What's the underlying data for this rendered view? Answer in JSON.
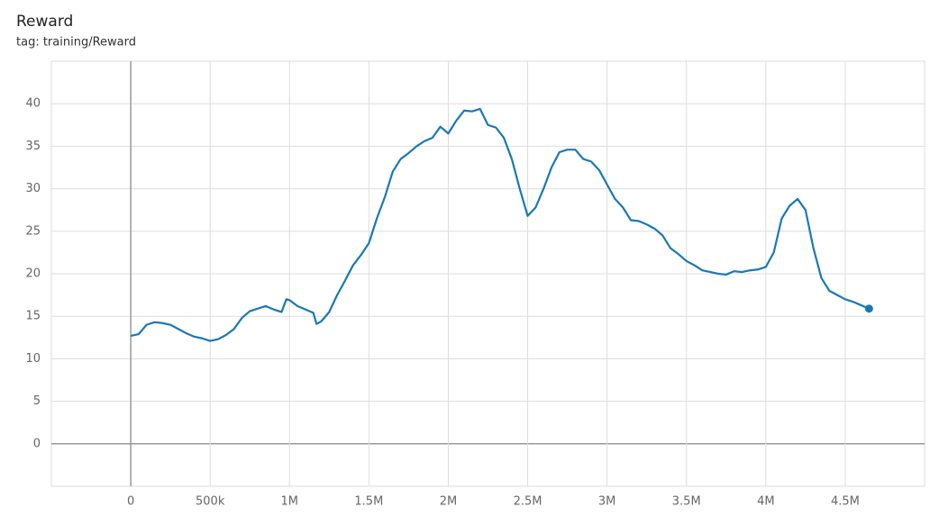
{
  "chart_data": {
    "type": "line",
    "title": "Reward",
    "subtitle": "tag: training/Reward",
    "x": [
      0,
      50000,
      100000,
      150000,
      200000,
      250000,
      300000,
      350000,
      400000,
      450000,
      500000,
      550000,
      600000,
      650000,
      700000,
      750000,
      800000,
      850000,
      900000,
      950000,
      980000,
      1000000,
      1050000,
      1100000,
      1150000,
      1170000,
      1200000,
      1250000,
      1300000,
      1350000,
      1400000,
      1450000,
      1500000,
      1550000,
      1600000,
      1650000,
      1700000,
      1750000,
      1800000,
      1850000,
      1900000,
      1950000,
      2000000,
      2050000,
      2100000,
      2150000,
      2200000,
      2250000,
      2300000,
      2350000,
      2400000,
      2450000,
      2500000,
      2550000,
      2600000,
      2650000,
      2700000,
      2750000,
      2800000,
      2850000,
      2900000,
      2950000,
      3000000,
      3050000,
      3100000,
      3150000,
      3200000,
      3250000,
      3300000,
      3350000,
      3400000,
      3450000,
      3500000,
      3550000,
      3600000,
      3650000,
      3700000,
      3750000,
      3800000,
      3850000,
      3900000,
      3950000,
      4000000,
      4050000,
      4100000,
      4150000,
      4200000,
      4250000,
      4300000,
      4350000,
      4400000,
      4450000,
      4500000,
      4550000,
      4600000,
      4650000
    ],
    "series": [
      {
        "name": "Reward",
        "color": "#1a78b8",
        "values": [
          12.7,
          12.9,
          14.0,
          14.3,
          14.2,
          14.0,
          13.5,
          13.0,
          12.6,
          12.4,
          12.1,
          12.3,
          12.8,
          13.5,
          14.8,
          15.6,
          15.9,
          16.2,
          15.8,
          15.5,
          17.0,
          16.9,
          16.2,
          15.8,
          15.4,
          14.1,
          14.4,
          15.5,
          17.5,
          19.2,
          21.0,
          22.2,
          23.6,
          26.5,
          29.0,
          32.0,
          33.5,
          34.2,
          35.0,
          35.6,
          36.0,
          37.3,
          36.5,
          38.0,
          39.2,
          39.1,
          39.4,
          37.5,
          37.2,
          36.0,
          33.5,
          30.0,
          26.8,
          27.8,
          30.0,
          32.5,
          34.3,
          34.6,
          34.6,
          33.5,
          33.2,
          32.2,
          30.5,
          28.8,
          27.8,
          26.3,
          26.2,
          25.8,
          25.3,
          24.5,
          23.0,
          22.3,
          21.5,
          21.0,
          20.4,
          20.2,
          20.0,
          19.9,
          20.3,
          20.2,
          20.4,
          20.5,
          20.8,
          22.5,
          26.5,
          28.0,
          28.8,
          27.5,
          23.0,
          19.5,
          18.0,
          17.5,
          17.0,
          16.7,
          16.3,
          15.9
        ]
      }
    ],
    "xlim": [
      -500000,
      5000000
    ],
    "xticks": [
      0,
      {
        "value": 500000,
        "label": "500k"
      },
      {
        "value": 1000000,
        "label": "1M"
      },
      {
        "value": 1500000,
        "label": "1.5M"
      },
      {
        "value": 2000000,
        "label": "2M"
      },
      {
        "value": 2500000,
        "label": "2.5M"
      },
      {
        "value": 3000000,
        "label": "3M"
      },
      {
        "value": 3500000,
        "label": "3.5M"
      },
      {
        "value": 4000000,
        "label": "4M"
      },
      {
        "value": 4500000,
        "label": "4.5M"
      }
    ],
    "ylim": [
      -5,
      45
    ],
    "yticks": [
      0,
      5,
      10,
      15,
      20,
      25,
      30,
      35,
      40
    ],
    "grid": true
  }
}
